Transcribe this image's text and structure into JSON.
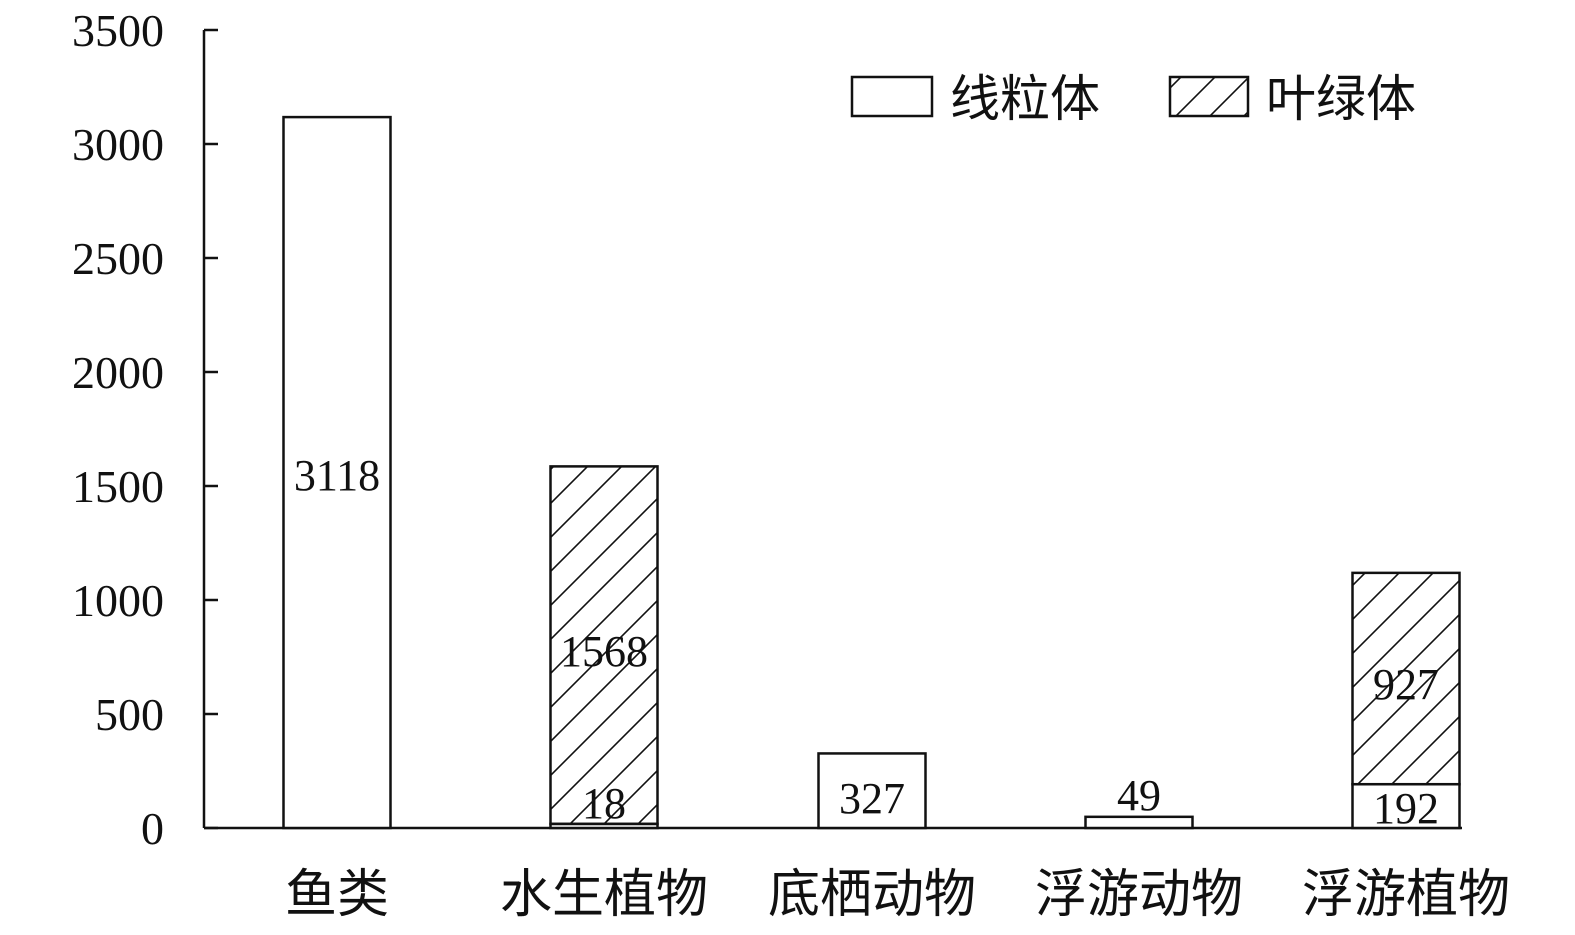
{
  "chart_data": {
    "type": "bar",
    "stacked": true,
    "categories": [
      "鱼类",
      "水生植物",
      "底栖动物",
      "浮游动物",
      "浮游植物"
    ],
    "series": [
      {
        "name": "线粒体",
        "fill": "none",
        "values": [
          3118,
          18,
          327,
          49,
          192
        ]
      },
      {
        "name": "叶绿体",
        "fill": "hatch",
        "values": [
          0,
          1568,
          0,
          0,
          927
        ]
      }
    ],
    "data_labels": [
      [
        "3118",
        "18",
        "327",
        "49",
        "192"
      ],
      [
        "",
        "1568",
        "",
        "",
        "927"
      ]
    ],
    "ylim": [
      0,
      3500
    ],
    "yticks": [
      0,
      500,
      1000,
      1500,
      2000,
      2500,
      3000,
      3500
    ],
    "title": "",
    "xlabel": "",
    "ylabel": "",
    "grid": false,
    "legend_position": "top-right",
    "colors": {
      "stroke": "#111111",
      "background": "#ffffff"
    }
  }
}
